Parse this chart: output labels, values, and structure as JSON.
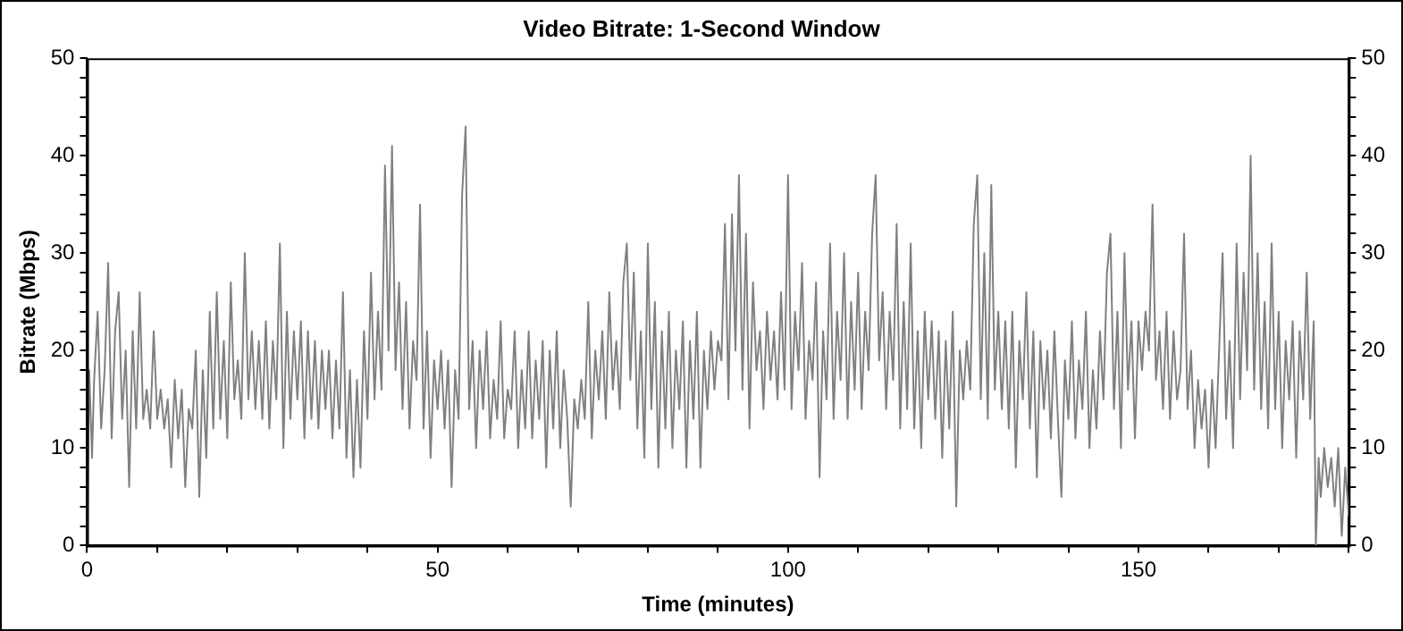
{
  "chart_data": {
    "type": "line",
    "title": "Video Bitrate: 1-Second Window",
    "xlabel": "Time (minutes)",
    "ylabel": "Bitrate (Mbps)",
    "xlim": [
      0,
      180
    ],
    "xticks": [
      0,
      {
        "value": 10,
        "label": null
      },
      {
        "value": 20,
        "label": null
      },
      {
        "value": 30,
        "label": null
      },
      {
        "value": 40,
        "label": null
      },
      50,
      {
        "value": 60,
        "label": null
      },
      {
        "value": 70,
        "label": null
      },
      {
        "value": 80,
        "label": null
      },
      {
        "value": 90,
        "label": null
      },
      100,
      {
        "value": 110,
        "label": null
      },
      {
        "value": 120,
        "label": null
      },
      {
        "value": 130,
        "label": null
      },
      {
        "value": 140,
        "label": null
      },
      150,
      {
        "value": 160,
        "label": null
      },
      {
        "value": 170,
        "label": null
      },
      {
        "value": 180,
        "label": null
      }
    ],
    "ylim": [
      0,
      50
    ],
    "yticks": [
      0,
      {
        "value": 2,
        "label": null
      },
      {
        "value": 4,
        "label": null
      },
      {
        "value": 6,
        "label": null
      },
      {
        "value": 8,
        "label": null
      },
      10,
      {
        "value": 12,
        "label": null
      },
      {
        "value": 14,
        "label": null
      },
      {
        "value": 16,
        "label": null
      },
      {
        "value": 18,
        "label": null
      },
      20,
      {
        "value": 22,
        "label": null
      },
      {
        "value": 24,
        "label": null
      },
      {
        "value": 26,
        "label": null
      },
      {
        "value": 28,
        "label": null
      },
      30,
      {
        "value": 32,
        "label": null
      },
      {
        "value": 34,
        "label": null
      },
      {
        "value": 36,
        "label": null
      },
      {
        "value": 38,
        "label": null
      },
      40,
      {
        "value": 42,
        "label": null
      },
      {
        "value": 44,
        "label": null
      },
      {
        "value": 46,
        "label": null
      },
      {
        "value": 48,
        "label": null
      },
      50
    ],
    "y2lim": [
      0,
      50
    ],
    "y2ticks": [
      0,
      {
        "value": 2,
        "label": null
      },
      {
        "value": 4,
        "label": null
      },
      {
        "value": 6,
        "label": null
      },
      {
        "value": 8,
        "label": null
      },
      10,
      {
        "value": 12,
        "label": null
      },
      {
        "value": 14,
        "label": null
      },
      {
        "value": 16,
        "label": null
      },
      {
        "value": 18,
        "label": null
      },
      20,
      {
        "value": 22,
        "label": null
      },
      {
        "value": 24,
        "label": null
      },
      {
        "value": 26,
        "label": null
      },
      {
        "value": 28,
        "label": null
      },
      30,
      {
        "value": 32,
        "label": null
      },
      {
        "value": 34,
        "label": null
      },
      {
        "value": 36,
        "label": null
      },
      {
        "value": 38,
        "label": null
      },
      40,
      {
        "value": 42,
        "label": null
      },
      {
        "value": 44,
        "label": null
      },
      {
        "value": 46,
        "label": null
      },
      {
        "value": 48,
        "label": null
      },
      50
    ],
    "grid": false,
    "legend": false,
    "marker": "none",
    "line_style": "solid",
    "series": [
      {
        "color": "#808080",
        "x": [
          0,
          0.3,
          0.7,
          1,
          1.5,
          2,
          2.5,
          3,
          3.5,
          4,
          4.5,
          5,
          5.5,
          6,
          6.5,
          7,
          7.5,
          8,
          8.5,
          9,
          9.5,
          10,
          10.5,
          11,
          11.5,
          12,
          12.5,
          13,
          13.5,
          14,
          14.5,
          15,
          15.5,
          16,
          16.5,
          17,
          17.5,
          18,
          18.5,
          19,
          19.5,
          20,
          20.5,
          21,
          21.5,
          22,
          22.5,
          23,
          23.5,
          24,
          24.5,
          25,
          25.5,
          26,
          26.5,
          27,
          27.5,
          28,
          28.5,
          29,
          29.5,
          30,
          30.5,
          31,
          31.5,
          32,
          32.5,
          33,
          33.5,
          34,
          34.5,
          35,
          35.5,
          36,
          36.5,
          37,
          37.5,
          38,
          38.5,
          39,
          39.5,
          40,
          40.5,
          41,
          41.5,
          42,
          42.5,
          43,
          43.5,
          44,
          44.5,
          45,
          45.5,
          46,
          46.5,
          47,
          47.5,
          48,
          48.5,
          49,
          49.5,
          50,
          50.5,
          51,
          51.5,
          52,
          52.5,
          53,
          53.5,
          54,
          54.5,
          55,
          55.5,
          56,
          56.5,
          57,
          57.5,
          58,
          58.5,
          59,
          59.5,
          60,
          60.5,
          61,
          61.5,
          62,
          62.5,
          63,
          63.5,
          64,
          64.5,
          65,
          65.5,
          66,
          66.5,
          67,
          67.5,
          68,
          68.5,
          69,
          69.5,
          70,
          70.5,
          71,
          71.5,
          72,
          72.5,
          73,
          73.5,
          74,
          74.5,
          75,
          75.5,
          76,
          76.5,
          77,
          77.5,
          78,
          78.5,
          79,
          79.5,
          80,
          80.5,
          81,
          81.5,
          82,
          82.5,
          83,
          83.5,
          84,
          84.5,
          85,
          85.5,
          86,
          86.5,
          87,
          87.5,
          88,
          88.5,
          89,
          89.5,
          90,
          90.5,
          91,
          91.5,
          92,
          92.5,
          93,
          93.5,
          94,
          94.5,
          95,
          95.5,
          96,
          96.5,
          97,
          97.5,
          98,
          98.5,
          99,
          99.5,
          100,
          100.5,
          101,
          101.5,
          102,
          102.5,
          103,
          103.5,
          104,
          104.5,
          105,
          105.5,
          106,
          106.5,
          107,
          107.5,
          108,
          108.5,
          109,
          109.5,
          110,
          110.5,
          111,
          111.5,
          112,
          112.5,
          113,
          113.5,
          114,
          114.5,
          115,
          115.5,
          116,
          116.5,
          117,
          117.5,
          118,
          118.5,
          119,
          119.5,
          120,
          120.5,
          121,
          121.5,
          122,
          122.5,
          123,
          123.5,
          124,
          124.5,
          125,
          125.5,
          126,
          126.5,
          127,
          127.5,
          128,
          128.5,
          129,
          129.5,
          130,
          130.5,
          131,
          131.5,
          132,
          132.5,
          133,
          133.5,
          134,
          134.5,
          135,
          135.5,
          136,
          136.5,
          137,
          137.5,
          138,
          138.5,
          139,
          139.5,
          140,
          140.5,
          141,
          141.5,
          142,
          142.5,
          143,
          143.5,
          144,
          144.5,
          145,
          145.5,
          146,
          146.5,
          147,
          147.5,
          148,
          148.5,
          149,
          149.5,
          150,
          150.5,
          151,
          151.5,
          152,
          152.5,
          153,
          153.5,
          154,
          154.5,
          155,
          155.5,
          156,
          156.5,
          157,
          157.5,
          158,
          158.5,
          159,
          159.5,
          160,
          160.5,
          161,
          161.5,
          162,
          162.5,
          163,
          163.5,
          164,
          164.5,
          165,
          165.5,
          166,
          166.5,
          167,
          167.5,
          168,
          168.5,
          169,
          169.5,
          170,
          170.5,
          171,
          171.5,
          172,
          172.5,
          173,
          173.5,
          174,
          174.5,
          175,
          175.3,
          175.7,
          176,
          176.5,
          177,
          177.5,
          178,
          178.5,
          179,
          179.5,
          180
        ],
        "values": [
          0,
          18,
          9,
          17,
          24,
          12,
          18,
          29,
          11,
          22,
          26,
          13,
          20,
          6,
          22,
          12,
          26,
          13,
          16,
          12,
          22,
          13,
          16,
          12,
          15,
          8,
          17,
          11,
          16,
          6,
          14,
          12,
          20,
          5,
          18,
          9,
          24,
          12,
          26,
          13,
          21,
          11,
          27,
          15,
          19,
          13,
          30,
          15,
          22,
          14,
          21,
          13,
          23,
          12,
          21,
          15,
          31,
          10,
          24,
          13,
          22,
          15,
          23,
          11,
          22,
          13,
          21,
          12,
          20,
          14,
          20,
          11,
          19,
          12,
          26,
          9,
          18,
          7,
          17,
          8,
          22,
          13,
          28,
          15,
          24,
          16,
          39,
          20,
          41,
          18,
          27,
          14,
          25,
          12,
          21,
          17,
          35,
          12,
          22,
          9,
          19,
          14,
          20,
          12,
          19,
          6,
          18,
          13,
          36,
          43,
          14,
          21,
          10,
          20,
          14,
          22,
          11,
          17,
          13,
          23,
          11,
          16,
          14,
          22,
          10,
          18,
          12,
          22,
          11,
          19,
          13,
          21,
          8,
          20,
          12,
          22,
          10,
          18,
          13,
          4,
          15,
          12,
          17,
          13,
          25,
          11,
          20,
          15,
          22,
          13,
          26,
          16,
          21,
          14,
          27,
          31,
          17,
          28,
          12,
          22,
          9,
          31,
          14,
          25,
          8,
          22,
          12,
          24,
          10,
          20,
          14,
          23,
          8,
          21,
          13,
          24,
          8,
          20,
          14,
          22,
          16,
          21,
          19,
          33,
          15,
          34,
          20,
          38,
          16,
          32,
          12,
          27,
          18,
          22,
          14,
          24,
          17,
          22,
          15,
          26,
          16,
          38,
          14,
          24,
          18,
          29,
          13,
          21,
          17,
          27,
          7,
          22,
          15,
          31,
          13,
          24,
          17,
          30,
          13,
          25,
          16,
          28,
          14,
          24,
          18,
          32,
          38,
          19,
          26,
          14,
          24,
          17,
          33,
          12,
          25,
          14,
          31,
          12,
          22,
          10,
          24,
          15,
          23,
          13,
          22,
          9,
          21,
          12,
          24,
          4,
          20,
          15,
          21,
          16,
          33,
          38,
          15,
          30,
          13,
          37,
          16,
          24,
          14,
          23,
          12,
          24,
          8,
          21,
          15,
          26,
          12,
          22,
          7,
          21,
          14,
          20,
          11,
          22,
          13,
          5,
          19,
          13,
          23,
          11,
          19,
          14,
          24,
          10,
          18,
          12,
          22,
          15,
          28,
          32,
          14,
          24,
          10,
          30,
          16,
          23,
          11,
          23,
          18,
          24,
          20,
          35,
          17,
          22,
          14,
          24,
          13,
          22,
          15,
          18,
          32,
          14,
          20,
          10,
          17,
          12,
          16,
          8,
          17,
          10,
          20,
          30,
          13,
          21,
          10,
          31,
          15,
          28,
          18,
          40,
          16,
          30,
          14,
          25,
          12,
          31,
          14,
          24,
          10,
          21,
          15,
          23,
          9,
          22,
          15,
          28,
          13,
          23,
          0,
          9,
          5,
          10,
          6,
          9,
          4,
          10,
          1,
          8,
          3
        ]
      }
    ]
  }
}
